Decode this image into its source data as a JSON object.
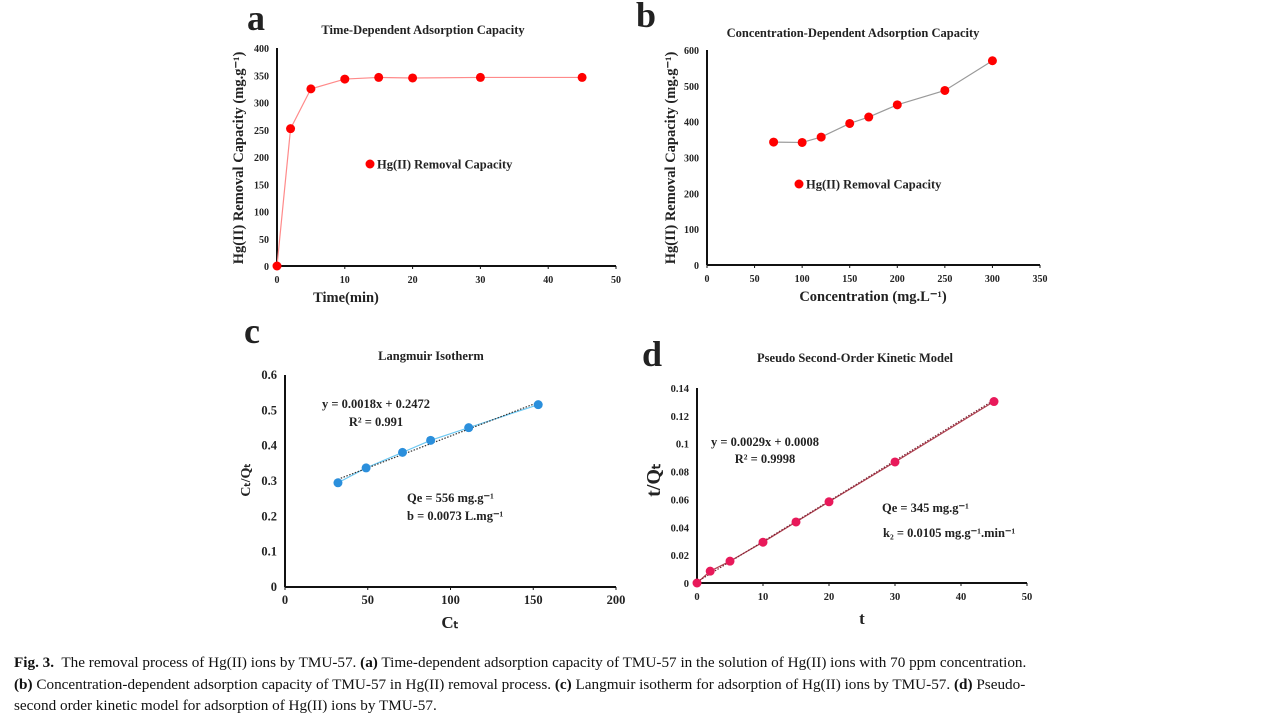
{
  "chart_data": [
    {
      "panel": "a",
      "type": "line",
      "title": "Time-Dependent Adsorption Capacity",
      "xlabel": "Time(min)",
      "ylabel": "Hg(II) Removal Capacity (mg.g⁻¹)",
      "xlim": [
        0,
        50
      ],
      "ylim": [
        0,
        400
      ],
      "xticks": [
        0,
        10,
        20,
        30,
        40,
        50
      ],
      "yticks": [
        0,
        50,
        100,
        150,
        200,
        250,
        300,
        350,
        400
      ],
      "grid": false,
      "legend": "center",
      "series": [
        {
          "name": "Hg(II) Removal Capacity",
          "color": "#ff0000",
          "line_color": "#ff8a8a",
          "x": [
            0,
            2,
            5,
            10,
            15,
            20,
            30,
            45
          ],
          "y": [
            0,
            252,
            325,
            343,
            346,
            345,
            346,
            346
          ]
        }
      ]
    },
    {
      "panel": "b",
      "type": "line",
      "title": "Concentration-Dependent Adsorption Capacity",
      "xlabel": "Concentration (mg.L⁻¹)",
      "ylabel": "Hg(II) Removal Capacity (mg.g⁻¹)",
      "xlim": [
        0,
        350
      ],
      "ylim": [
        0,
        600
      ],
      "xticks": [
        0,
        50,
        100,
        150,
        200,
        250,
        300,
        350
      ],
      "yticks": [
        0,
        100,
        200,
        300,
        400,
        500,
        600
      ],
      "grid": false,
      "legend": "center",
      "series": [
        {
          "name": "Hg(II) Removal Capacity",
          "color": "#ff0000",
          "line_color": "#9a9a9a",
          "x": [
            70,
            100,
            120,
            150,
            170,
            200,
            250,
            300
          ],
          "y": [
            343,
            342,
            357,
            395,
            413,
            447,
            487,
            570
          ]
        }
      ]
    },
    {
      "panel": "c",
      "type": "scatter",
      "title": "Langmuir Isotherm",
      "xlabel": "Cₜ",
      "ylabel": "Cₜ/Qₜ",
      "xlim": [
        0,
        200
      ],
      "ylim": [
        0,
        0.6
      ],
      "xticks": [
        0,
        50,
        100,
        150,
        200
      ],
      "yticks": [
        0,
        0.1,
        0.2,
        0.3,
        0.4,
        0.5,
        0.6
      ],
      "grid": false,
      "series": [
        {
          "color": "#2b8fdc",
          "line_color": "#6cc8f2",
          "x": [
            32,
            49,
            71,
            88,
            111,
            153
          ],
          "y": [
            0.295,
            0.337,
            0.381,
            0.415,
            0.451,
            0.516
          ]
        }
      ],
      "trendline": {
        "slope": 0.0018,
        "intercept": 0.2472,
        "color": "#333333"
      },
      "annotations": [
        "y = 0.0018x + 0.2472",
        "R² = 0.991",
        "Qe = 556 mg.g⁻¹",
        "b = 0.0073 L.mg⁻¹"
      ]
    },
    {
      "panel": "d",
      "type": "scatter",
      "title": "Pseudo Second-Order Kinetic Model",
      "xlabel": "t",
      "ylabel": "t/Qₜ",
      "xlim": [
        0,
        50
      ],
      "ylim": [
        0,
        0.14
      ],
      "xticks": [
        0,
        10,
        20,
        30,
        40,
        50
      ],
      "yticks": [
        0,
        0.02,
        0.04,
        0.06,
        0.08,
        0.1,
        0.12,
        0.14
      ],
      "grid": false,
      "series": [
        {
          "color": "#e8195a",
          "line_color": "#b04050",
          "x": [
            0,
            2,
            5,
            10,
            15,
            20,
            30,
            45
          ],
          "y": [
            0,
            0.0085,
            0.0157,
            0.0293,
            0.0438,
            0.0583,
            0.0869,
            0.1303
          ]
        }
      ],
      "trendline": {
        "slope": 0.0029,
        "intercept": 0.0008,
        "color": "#7a2030"
      },
      "annotations": [
        "y = 0.0029x + 0.0008",
        "R² = 0.9998",
        "Qe = 345 mg.g⁻¹",
        "k₂ = 0.0105 mg.g⁻¹.min⁻¹"
      ]
    }
  ],
  "caption": {
    "lines": [
      [
        {
          "text": "Fig. 3.",
          "bold": true
        },
        {
          "text": "  The removal process of Hg(II) ions by TMU-57. ",
          "bold": false
        },
        {
          "text": "(a)",
          "bold": true
        },
        {
          "text": " Time-dependent adsorption capacity of TMU-57 in the solution of Hg(II) ions with 70 ppm concentration.",
          "bold": false
        }
      ],
      [
        {
          "text": "(b)",
          "bold": true
        },
        {
          "text": " Concentration-dependent adsorption capacity of TMU-57 in Hg(II) removal process. ",
          "bold": false
        },
        {
          "text": "(c)",
          "bold": true
        },
        {
          "text": " Langmuir isotherm for adsorption of Hg(II) ions by TMU-57. ",
          "bold": false
        },
        {
          "text": "(d)",
          "bold": true
        },
        {
          "text": " Pseudo-",
          "bold": false
        }
      ],
      [
        {
          "text": "second order kinetic model for adsorption of Hg(II) ions by TMU-57.",
          "bold": false
        }
      ]
    ]
  }
}
